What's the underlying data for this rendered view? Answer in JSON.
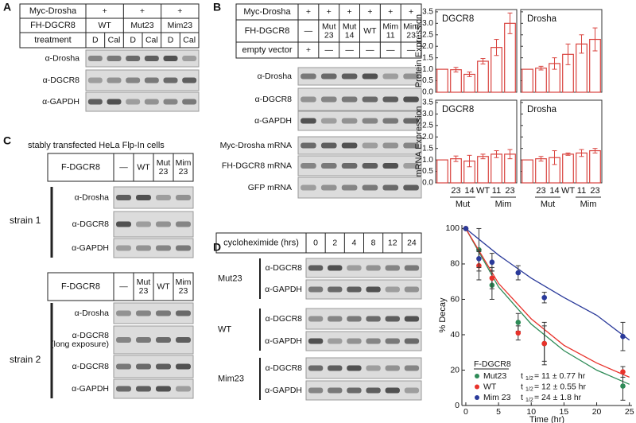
{
  "panel_a": {
    "label": "A",
    "table": {
      "rows": [
        {
          "header": "Myc-Drosha",
          "cells": [
            "+",
            "+",
            "+"
          ]
        },
        {
          "header": "FH-DGCR8",
          "cells": [
            "WT",
            "Mut23",
            "Mim23"
          ]
        },
        {
          "header": "treatment",
          "cells": [
            "D",
            "Cal",
            "D",
            "Cal",
            "D",
            "Cal"
          ]
        }
      ]
    },
    "blots": [
      "α-Drosha",
      "α-DGCR8",
      "α-GAPDH"
    ]
  },
  "panel_b": {
    "label": "B",
    "table": {
      "rows": [
        {
          "header": "Myc-Drosha",
          "cells": [
            "+",
            "+",
            "+",
            "+",
            "+",
            "+"
          ]
        },
        {
          "header": "FH-DGCR8",
          "cells": [
            "—",
            [
              "Mut",
              "23"
            ],
            [
              "Mut",
              "14"
            ],
            "WT",
            [
              "Mim",
              "11"
            ],
            [
              "Mim",
              "23"
            ]
          ]
        },
        {
          "header": "empty vector",
          "cells": [
            "+",
            "—",
            "—",
            "—",
            "—",
            "—"
          ]
        }
      ]
    },
    "blots": [
      "α-Drosha",
      "α-DGCR8",
      "α-GAPDH",
      "Myc-Drosha mRNA",
      "FH-DGCR8 mRNA",
      "GFP mRNA"
    ]
  },
  "panel_c": {
    "label": "C",
    "caption": "stably transfected HeLa Flp-In cells",
    "strains": [
      {
        "name": "strain 1",
        "table": {
          "header": "F-DGCR8",
          "cells": [
            "—",
            "WT",
            [
              "Mut",
              "23"
            ],
            [
              "Mim",
              "23"
            ]
          ]
        },
        "blots": [
          "α-Drosha",
          "α-DGCR8",
          "α-GAPDH"
        ]
      },
      {
        "name": "strain 2",
        "table": {
          "header": "F-DGCR8",
          "cells": [
            "—",
            [
              "Mut",
              "23"
            ],
            "WT",
            [
              "Mim",
              "23"
            ]
          ]
        },
        "blots": [
          "α-Drosha",
          [
            "α-DGCR8",
            "(long exposure)"
          ],
          "α-DGCR8",
          "α-GAPDH"
        ]
      }
    ]
  },
  "panel_d": {
    "label": "D",
    "table": {
      "header": "cycloheximide (hrs)",
      "cells": [
        "0",
        "2",
        "4",
        "8",
        "12",
        "24"
      ]
    },
    "groups": [
      {
        "name": "Mut23",
        "blots": [
          "α-DGCR8",
          "α-GAPDH"
        ]
      },
      {
        "name": "WT",
        "blots": [
          "α-DGCR8",
          "α-GAPDH"
        ]
      },
      {
        "name": "Mim23",
        "blots": [
          "α-DGCR8",
          "α-GAPDH"
        ]
      }
    ]
  },
  "chart_data": [
    {
      "type": "bar",
      "title": "DGCR8",
      "ylabel": "Protein Expression",
      "color": "#d9443f",
      "values": [
        1.0,
        0.98,
        0.78,
        1.35,
        1.95,
        3.0
      ],
      "errors": [
        null,
        0.1,
        0.1,
        0.12,
        0.35,
        0.45
      ],
      "ylim": [
        0,
        3.6
      ],
      "yticks": [
        {
          "value": 0,
          "label": "0.0"
        },
        {
          "value": 0.5,
          "label": "0.5"
        },
        {
          "value": 1,
          "label": "1.0"
        },
        {
          "value": 1.5,
          "label": "1.5"
        },
        {
          "value": 2,
          "label": "2.0"
        },
        {
          "value": 2.5,
          "label": "2.5"
        },
        {
          "value": 3,
          "label": "3.0"
        },
        {
          "value": 3.5,
          "label": "3.5"
        }
      ]
    },
    {
      "type": "bar",
      "title": "Drosha",
      "color": "#d9443f",
      "values": [
        1.0,
        1.05,
        1.25,
        1.65,
        2.1,
        2.3
      ],
      "errors": [
        null,
        0.08,
        0.25,
        0.45,
        0.4,
        0.5
      ],
      "ylim": [
        0,
        3.6
      ],
      "yticks": [
        0,
        0.5,
        1,
        1.5,
        2,
        2.5,
        3,
        3.5
      ]
    },
    {
      "type": "bar",
      "title": "DGCR8",
      "ylabel": "mRNA Expression",
      "color": "#d9443f",
      "categories": [
        null,
        "23",
        "14",
        "WT",
        "11",
        "23"
      ],
      "group_labels": [
        "Mut",
        "Mim"
      ],
      "values": [
        1.0,
        1.05,
        0.95,
        1.15,
        1.25,
        1.25
      ],
      "errors": [
        null,
        0.12,
        0.25,
        0.1,
        0.15,
        0.2
      ],
      "ylim": [
        0,
        3.6
      ],
      "yticks": [
        {
          "value": 0,
          "label": "0.0"
        },
        {
          "value": 0.5,
          "label": "0.5"
        },
        {
          "value": 1,
          "label": "1.0"
        },
        {
          "value": 1.5,
          "label": "1.5"
        },
        {
          "value": 2,
          "label": "2.0"
        },
        {
          "value": 2.5,
          "label": "2.5"
        },
        {
          "value": 3,
          "label": "3.0"
        },
        {
          "value": 3.5,
          "label": "3.5"
        }
      ]
    },
    {
      "type": "bar",
      "title": "Drosha",
      "color": "#d9443f",
      "categories": [
        null,
        "23",
        "14",
        "WT",
        "11",
        "23"
      ],
      "group_labels": [
        "Mut",
        "Mim"
      ],
      "values": [
        1.0,
        1.05,
        1.1,
        1.25,
        1.3,
        1.4
      ],
      "errors": [
        null,
        0.1,
        0.3,
        0.05,
        0.15,
        0.1
      ],
      "ylim": [
        0,
        3.6
      ],
      "yticks": [
        0,
        0.5,
        1,
        1.5,
        2,
        2.5,
        3,
        3.5
      ]
    },
    {
      "type": "scatter",
      "xlabel": "Time (hr)",
      "ylabel": "% Decay",
      "legend_title": "F-DGCR8",
      "xlim": [
        -0.6,
        25.4
      ],
      "ylim": [
        0,
        102
      ],
      "xticks": [
        0,
        5,
        10,
        15,
        20,
        25
      ],
      "yticks": [
        0,
        20,
        40,
        60,
        80,
        100
      ],
      "series": [
        {
          "name": "Mut23",
          "color": "#2e8b57",
          "x": [
            0,
            2,
            4,
            8,
            12,
            24
          ],
          "values": [
            100,
            88,
            68,
            47,
            35,
            11
          ],
          "errors": [
            null,
            12,
            8,
            5,
            12,
            8
          ],
          "half_life": {
            "symbol": "t",
            "subscript": "1/2",
            "text": "= 11 ± 0.77 hr"
          },
          "fit": {
            "x": [
              0,
              5,
              10,
              15,
              20,
              25
            ],
            "values": [
              100,
              67,
              46,
              31,
              20,
              12
            ]
          }
        },
        {
          "name": "WT",
          "color": "#e8322b",
          "x": [
            0,
            2,
            4,
            8,
            12,
            24
          ],
          "values": [
            100,
            79,
            72,
            41,
            35,
            19
          ],
          "errors": [
            null,
            8,
            6,
            4,
            10,
            3
          ],
          "half_life": {
            "symbol": "t",
            "subscript": "1/2",
            "text": "= 12 ± 0.55 hr"
          },
          "fit": {
            "x": [
              0,
              5,
              10,
              15,
              20,
              25
            ],
            "values": [
              100,
              69,
              49,
              34,
              24,
              16
            ]
          }
        },
        {
          "name": "Mim 23",
          "color": "#2a3a9a",
          "x": [
            0,
            2,
            4,
            8,
            12,
            24
          ],
          "values": [
            100,
            83,
            81,
            75,
            61,
            39
          ],
          "errors": [
            null,
            5,
            5,
            4,
            3,
            8
          ],
          "half_life": {
            "symbol": "t",
            "subscript": "1/2",
            "text": "= 24 ± 1.8 hr"
          },
          "fit": {
            "x": [
              0,
              5,
              10,
              15,
              20,
              25
            ],
            "values": [
              100,
              85,
              72,
              61,
              51,
              37
            ]
          }
        }
      ]
    }
  ]
}
